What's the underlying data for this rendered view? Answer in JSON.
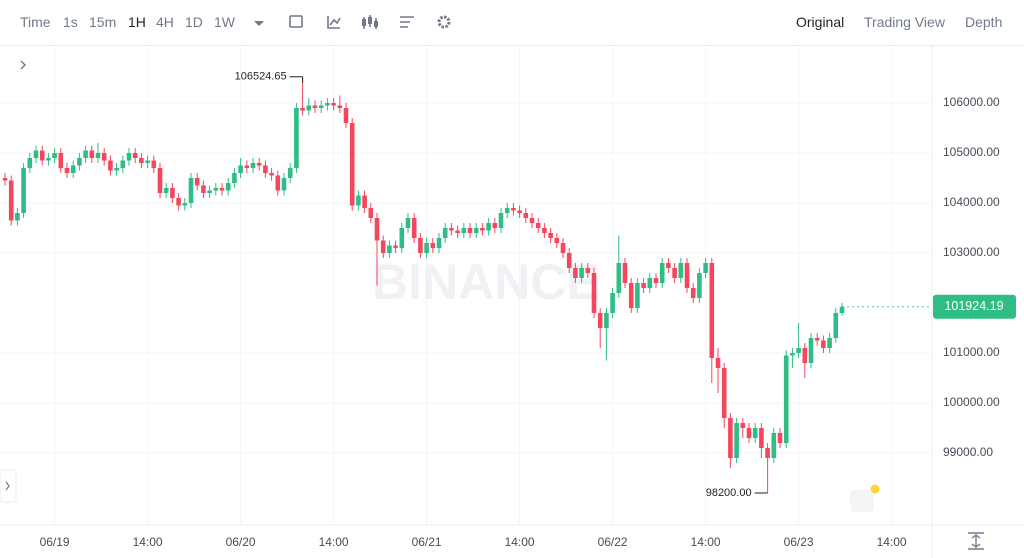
{
  "toolbar": {
    "intervals": [
      "Time",
      "1s",
      "15m",
      "1H",
      "4H",
      "1D",
      "1W"
    ],
    "views": [
      "Original",
      "Trading View",
      "Depth"
    ]
  },
  "chart_data": {
    "type": "candlestick",
    "watermark": "BINANCE",
    "up_color": "#2ebd85",
    "down_color": "#f6465d",
    "grid": true,
    "categories": [
      null,
      null,
      null,
      null,
      null,
      null,
      null,
      null,
      "06/19",
      null,
      null,
      null,
      null,
      null,
      null,
      null,
      null,
      null,
      null,
      null,
      null,
      null,
      null,
      "14:00",
      null,
      null,
      null,
      null,
      null,
      null,
      null,
      null,
      null,
      null,
      null,
      null,
      null,
      null,
      "06/20",
      null,
      null,
      null,
      null,
      null,
      null,
      null,
      null,
      null,
      null,
      null,
      null,
      null,
      null,
      "14:00",
      null,
      null,
      null,
      null,
      null,
      null,
      null,
      null,
      null,
      null,
      null,
      null,
      null,
      null,
      "06/21",
      null,
      null,
      null,
      null,
      null,
      null,
      null,
      null,
      null,
      null,
      null,
      null,
      null,
      null,
      "14:00",
      null,
      null,
      null,
      null,
      null,
      null,
      null,
      null,
      null,
      null,
      null,
      null,
      null,
      null,
      "06/22",
      null,
      null,
      null,
      null,
      null,
      null,
      null,
      null,
      null,
      null,
      null,
      null,
      null,
      null,
      "14:00",
      null,
      null,
      null,
      null,
      null,
      null,
      null,
      null,
      null,
      null,
      null,
      null,
      null,
      null,
      "06/23",
      null,
      null,
      null,
      null,
      null,
      null,
      null,
      null,
      null,
      null,
      null,
      null,
      null,
      null,
      "14:00"
    ],
    "open": [
      104500,
      104450,
      103650,
      103800,
      104700,
      104900,
      105050,
      104850,
      104900,
      105000,
      104700,
      104600,
      104750,
      104900,
      105050,
      104900,
      105000,
      104850,
      104650,
      104700,
      104850,
      105000,
      104900,
      104800,
      104850,
      104700,
      104200,
      104300,
      104100,
      103950,
      104000,
      104500,
      104350,
      104200,
      104250,
      104300,
      104250,
      104400,
      104600,
      104750,
      104700,
      104800,
      104750,
      104600,
      104550,
      104250,
      104500,
      104700,
      105900,
      105850,
      105950,
      105900,
      105950,
      106000,
      105950,
      105900,
      105600,
      103950,
      104150,
      103900,
      103700,
      103250,
      103000,
      103150,
      103100,
      103500,
      103700,
      103300,
      103000,
      103200,
      103100,
      103300,
      103500,
      103450,
      103400,
      103500,
      103400,
      103500,
      103450,
      103600,
      103500,
      103800,
      103900,
      103850,
      103800,
      103700,
      103600,
      103500,
      103400,
      103300,
      103200,
      103000,
      102700,
      102500,
      102700,
      102600,
      101800,
      101500,
      101800,
      102200,
      102800,
      102400,
      101900,
      102400,
      102300,
      102500,
      102400,
      102800,
      102700,
      102500,
      102800,
      102300,
      102100,
      102600,
      102800,
      100900,
      100700,
      99700,
      98900,
      99600,
      99500,
      99300,
      99500,
      99100,
      98900,
      99400,
      99200,
      100950,
      101000,
      101100,
      100800,
      101300,
      101250,
      101100,
      101300,
      101800,
      null,
      null,
      null,
      null,
      null,
      null,
      null,
      null
    ],
    "high": [
      104600,
      104550,
      103900,
      104800,
      105000,
      105150,
      105150,
      105000,
      105100,
      105100,
      104800,
      104850,
      105000,
      105150,
      105150,
      105200,
      105100,
      104950,
      104800,
      104950,
      105100,
      105100,
      105000,
      104950,
      104950,
      104800,
      104400,
      104400,
      104200,
      104100,
      104600,
      104600,
      104450,
      104350,
      104400,
      104400,
      104500,
      104700,
      104900,
      104850,
      104900,
      104900,
      104850,
      104700,
      104650,
      104600,
      104800,
      106000,
      106524.65,
      106100,
      106050,
      106050,
      106100,
      106100,
      106150,
      106000,
      105700,
      104250,
      104250,
      104000,
      103800,
      103350,
      103250,
      103250,
      103600,
      103800,
      103800,
      103400,
      103300,
      103300,
      103400,
      103600,
      103600,
      103550,
      103600,
      103600,
      103600,
      103600,
      103700,
      103700,
      103900,
      104000,
      104000,
      103950,
      103900,
      103800,
      103700,
      103600,
      103500,
      103400,
      103300,
      103100,
      102800,
      102800,
      102800,
      102700,
      101900,
      101900,
      102300,
      103350,
      102900,
      102500,
      102500,
      102500,
      102600,
      102600,
      102900,
      102900,
      102800,
      102900,
      102900,
      102400,
      102700,
      102900,
      102900,
      101100,
      100800,
      99800,
      99700,
      99700,
      99600,
      99600,
      99600,
      99200,
      99500,
      99500,
      101050,
      101100,
      101600,
      101200,
      101400,
      101400,
      101350,
      101400,
      101900,
      102000,
      null,
      null,
      null,
      null,
      null,
      null,
      null,
      null
    ],
    "low": [
      104350,
      103550,
      103550,
      103700,
      104600,
      104800,
      104750,
      104750,
      104800,
      104600,
      104500,
      104500,
      104650,
      104800,
      104800,
      104800,
      104750,
      104550,
      104550,
      104600,
      104750,
      104800,
      104700,
      104700,
      104600,
      104100,
      104100,
      104000,
      103850,
      103850,
      103900,
      104250,
      104100,
      104100,
      104150,
      104150,
      104150,
      104300,
      104500,
      104600,
      104600,
      104650,
      104500,
      104450,
      104150,
      104150,
      104400,
      104600,
      105750,
      105750,
      105800,
      105800,
      105850,
      105850,
      105800,
      105500,
      103850,
      103850,
      103800,
      103600,
      102350,
      102900,
      102900,
      103000,
      103000,
      103400,
      103200,
      102900,
      102900,
      103000,
      103000,
      103200,
      103350,
      103300,
      103300,
      103300,
      103300,
      103350,
      103350,
      103400,
      103400,
      103700,
      103750,
      103700,
      103600,
      103500,
      103400,
      103300,
      103200,
      103100,
      102900,
      102600,
      102400,
      102400,
      102500,
      101700,
      101100,
      100850,
      101700,
      102100,
      102300,
      101800,
      101800,
      102200,
      102200,
      102300,
      102300,
      102600,
      102400,
      102400,
      102200,
      102000,
      102000,
      102500,
      100400,
      100200,
      99500,
      98700,
      98800,
      99300,
      99200,
      99200,
      98900,
      98200,
      98800,
      99100,
      99100,
      100700,
      100900,
      100500,
      100700,
      101150,
      101000,
      101000,
      101200,
      101750,
      null,
      null,
      null,
      null,
      null,
      null,
      null,
      null
    ],
    "close": [
      104450,
      103650,
      103800,
      104700,
      104900,
      105050,
      104850,
      104900,
      105000,
      104700,
      104600,
      104750,
      104900,
      105050,
      104900,
      105000,
      104850,
      104650,
      104700,
      104850,
      105000,
      104900,
      104800,
      104850,
      104700,
      104200,
      104300,
      104100,
      103950,
      104000,
      104500,
      104350,
      104200,
      104250,
      104300,
      104250,
      104400,
      104600,
      104750,
      104700,
      104800,
      104750,
      104600,
      104550,
      104250,
      104500,
      104700,
      105900,
      105850,
      105950,
      105900,
      105950,
      106000,
      105950,
      105900,
      105600,
      103950,
      104150,
      103900,
      103700,
      103250,
      103000,
      103150,
      103100,
      103500,
      103700,
      103300,
      103000,
      103200,
      103100,
      103300,
      103500,
      103450,
      103400,
      103500,
      103400,
      103500,
      103450,
      103600,
      103500,
      103800,
      103900,
      103850,
      103800,
      103700,
      103600,
      103500,
      103400,
      103300,
      103200,
      103000,
      102700,
      102500,
      102700,
      102600,
      101800,
      101500,
      101800,
      102200,
      102800,
      102400,
      101900,
      102400,
      102300,
      102500,
      102400,
      102800,
      102700,
      102500,
      102800,
      102300,
      102100,
      102600,
      102800,
      100900,
      100700,
      99700,
      98900,
      99600,
      99500,
      99300,
      99500,
      99100,
      98900,
      99400,
      99200,
      100950,
      101000,
      101100,
      100800,
      101300,
      101250,
      101100,
      101300,
      101800,
      101924.19,
      null,
      null,
      null,
      null,
      null,
      null,
      null,
      null
    ],
    "high_label": "106524.65",
    "low_label": "98200.00",
    "last_price_label": "101924.19",
    "ylim": [
      97560,
      107120
    ],
    "yticks": [
      {
        "value": 106000,
        "label": "106000.00"
      },
      {
        "value": 105000,
        "label": "105000.00"
      },
      {
        "value": 104000,
        "label": "104000.00"
      },
      {
        "value": 103000,
        "label": "103000.00"
      },
      {
        "value": 101000,
        "label": "101000.00"
      },
      {
        "value": 100000,
        "label": "100000.00"
      },
      {
        "value": 99000,
        "label": "99000.00"
      }
    ]
  }
}
